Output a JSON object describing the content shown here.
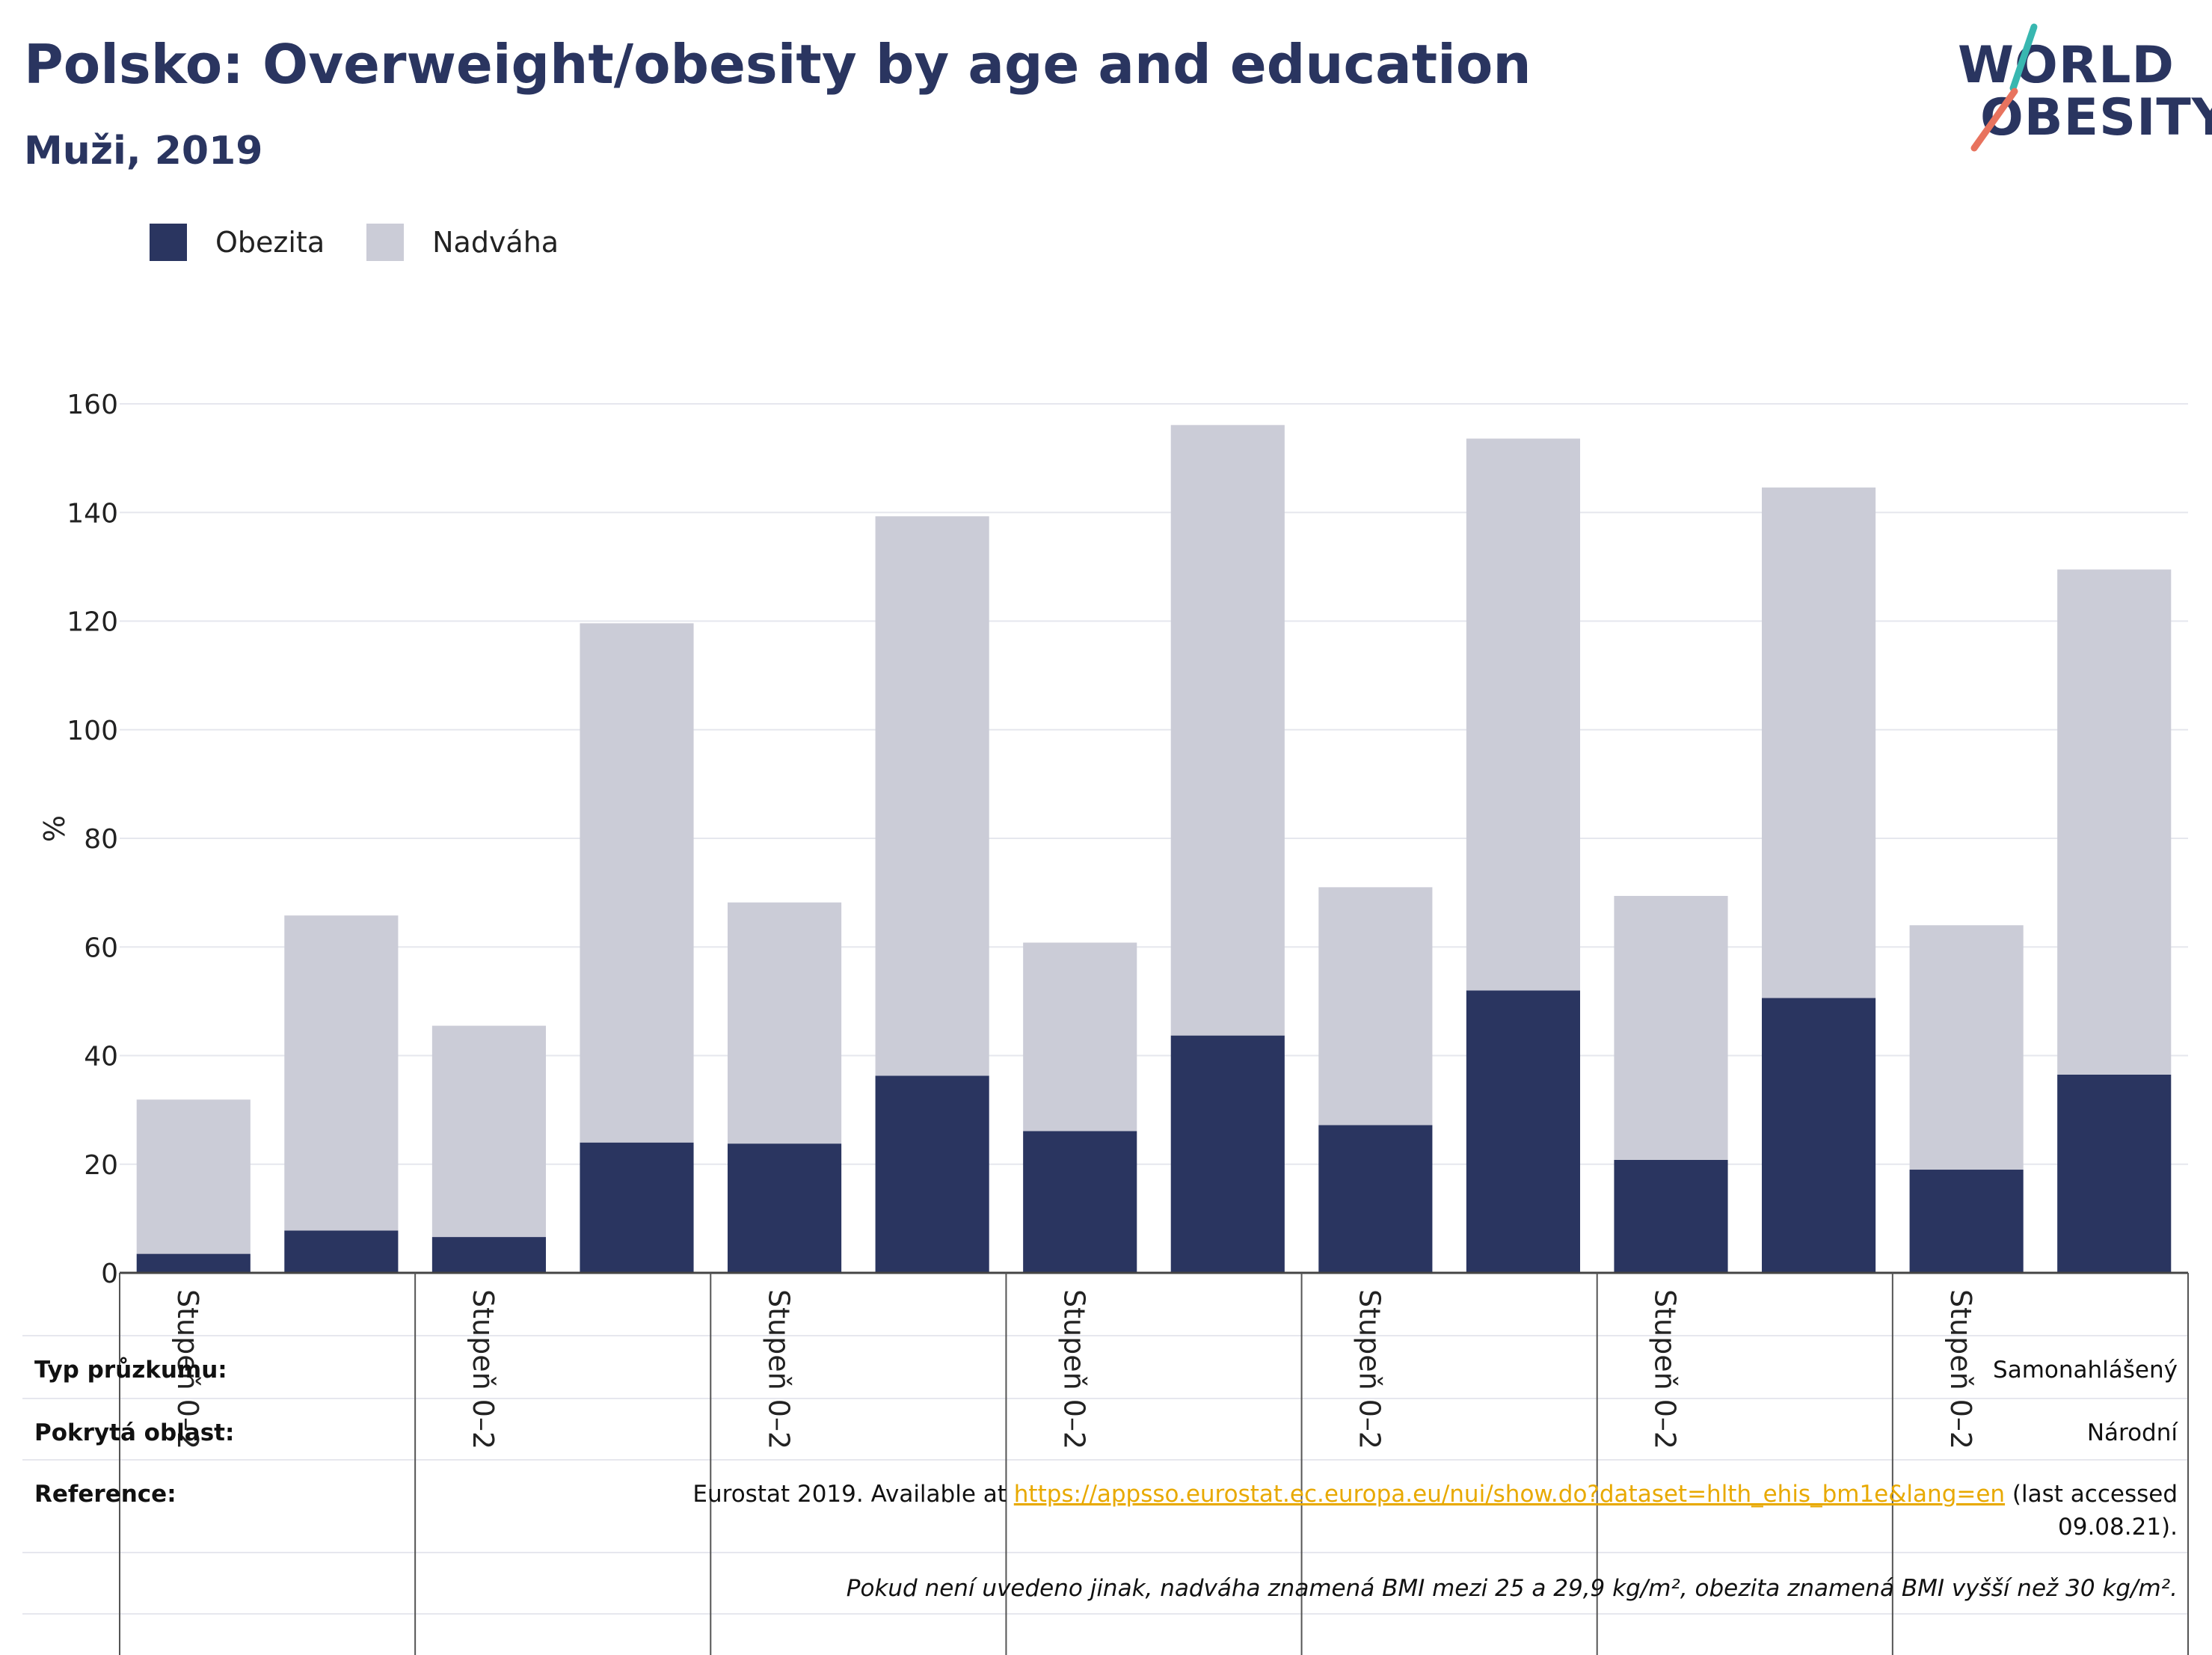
{
  "title": "Polsko: Overweight/obesity by age and education",
  "subtitle": "Muži, 2019",
  "logo": {
    "line1": "WORLD",
    "line2": "OBESITY"
  },
  "colors": {
    "obesity": "#2a3560",
    "overweight": "#cbccd7",
    "text": "#2a3560",
    "link": "#e8a900",
    "logo_teal": "#38b7b0",
    "logo_coral": "#e8735e"
  },
  "legend": [
    {
      "label": "Obezita",
      "color": "#2a3560"
    },
    {
      "label": "Nadváha",
      "color": "#cbccd7"
    }
  ],
  "chart_data": {
    "type": "bar",
    "stacked": true,
    "ylabel": "%",
    "ylim": [
      0,
      160
    ],
    "yticks": [
      0,
      20,
      40,
      60,
      80,
      100,
      120,
      140,
      160
    ],
    "grid": true,
    "group_labels": [
      "Stupeň 0–2",
      "Stupeň 0–2",
      "Stupeň 0–2",
      "Stupeň 0–2",
      "Stupeň 0–2",
      "Stupeň 0–2",
      "Stupeň 0–2"
    ],
    "series": [
      {
        "name": "Obezita",
        "values": [
          3.5,
          7.8,
          6.6,
          24.0,
          23.8,
          36.3,
          26.1,
          43.7,
          27.2,
          52.0,
          20.8,
          50.6,
          19.0,
          36.5
        ]
      },
      {
        "name": "Nadváha",
        "values": [
          28.4,
          58.0,
          38.9,
          95.6,
          44.4,
          103.0,
          34.7,
          112.4,
          43.8,
          101.6,
          48.6,
          94.0,
          45.0,
          93.0
        ]
      }
    ]
  },
  "info": {
    "survey_type_label": "Typ průzkumu:",
    "survey_type_value": "Samonahlášený",
    "coverage_label": "Pokrytá oblast:",
    "coverage_value": "Národní",
    "reference_label": "Reference:",
    "reference_text": "Eurostat 2019. Available at",
    "reference_link": "https://appsso.eurostat.ec.europa.eu/nui/show.do?dataset=hlth_ehis_bm1e&lang=en",
    "reference_suffix": "(last accessed",
    "reference_date": "09.08.21).",
    "footnote": "Pokud není uvedeno jinak, nadváha znamená BMI mezi 25 a 29,9 kg/m², obezita znamená BMI vyšší než 30 kg/m²."
  }
}
